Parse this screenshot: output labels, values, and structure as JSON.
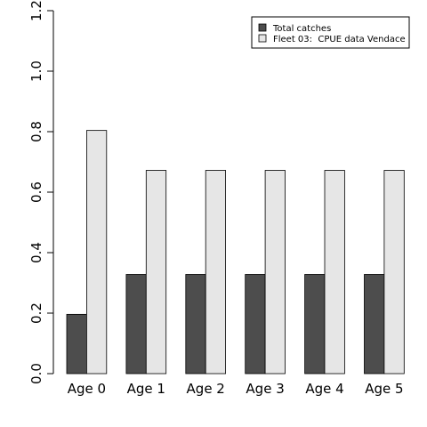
{
  "chart_data": {
    "type": "bar",
    "categories": [
      "Age 0",
      "Age 1",
      "Age 2",
      "Age 3",
      "Age 4",
      "Age 5"
    ],
    "series": [
      {
        "name": "Total catches",
        "values": [
          0.196,
          0.328,
          0.328,
          0.328,
          0.328,
          0.328
        ],
        "color": "#4d4d4d"
      },
      {
        "name": "Fleet 03:  CPUE data Vendace",
        "values": [
          0.804,
          0.672,
          0.672,
          0.672,
          0.672,
          0.672
        ],
        "color": "#e6e6e6"
      }
    ],
    "ylim": [
      0,
      1.2
    ],
    "yticks": [
      "0.0",
      "0.2",
      "0.4",
      "0.6",
      "0.8",
      "1.0",
      "1.2"
    ],
    "grid": false,
    "legend_position": "top-right"
  }
}
